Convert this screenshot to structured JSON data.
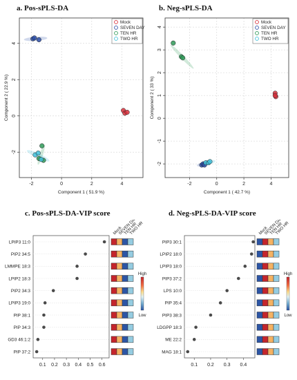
{
  "panels": {
    "a": {
      "title": "a. Pos-sPLS-DA"
    },
    "b": {
      "title": "b. Neg-sPLS-DA"
    },
    "c": {
      "title": "c. Pos-sPLS-DA-VIP score"
    },
    "d": {
      "title": "d. Neg-sPLS-DA-VIP score"
    }
  },
  "colors": {
    "Mock": "#d6303c",
    "SEVEN DAY": "#2f50a8",
    "TEN HR": "#2f9a58",
    "TWO HR": "#41c0d9"
  },
  "chart_data": [
    {
      "type": "scatter",
      "title": "a. Pos-sPLS-DA",
      "xlabel": "Component 1 ( 51.9 %)",
      "ylabel": "Component 2 ( 22.9 %)",
      "xlim": [
        -2.8,
        5.4
      ],
      "ylim": [
        -3.4,
        5.4
      ],
      "xticks": [
        -2,
        0,
        2,
        4
      ],
      "yticks": [
        -2,
        0,
        2,
        4
      ],
      "grid": true,
      "legend_placement": "top-right",
      "legend": [
        "Mock",
        "SEVEN DAY",
        "TEN HR",
        "TWO HR"
      ],
      "series": [
        {
          "name": "Mock",
          "points": [
            [
              4.1,
              0.3
            ],
            [
              4.2,
              0.15
            ],
            [
              4.35,
              0.2
            ]
          ]
        },
        {
          "name": "SEVEN DAY",
          "points": [
            [
              -1.9,
              4.25
            ],
            [
              -1.8,
              4.3
            ],
            [
              -1.5,
              4.2
            ]
          ]
        },
        {
          "name": "TEN HR",
          "points": [
            [
              -1.3,
              -1.65
            ],
            [
              -1.5,
              -2.35
            ],
            [
              -1.2,
              -2.45
            ]
          ]
        },
        {
          "name": "TWO HR",
          "points": [
            [
              -1.75,
              -2.15
            ],
            [
              -1.55,
              -2.05
            ],
            [
              -1.35,
              -2.4
            ]
          ]
        }
      ]
    },
    {
      "type": "scatter",
      "title": "b. Neg-sPLS-DA",
      "xlabel": "Component 1 ( 42.7 %)",
      "ylabel": "Component 2 ( 33 %)",
      "xlim": [
        -3.8,
        5.3
      ],
      "ylim": [
        -2.6,
        4.4
      ],
      "xticks": [
        -2,
        0,
        2,
        4
      ],
      "yticks": [
        -2,
        -1,
        0,
        1,
        2,
        3,
        4
      ],
      "grid": true,
      "legend_placement": "top-right",
      "legend": [
        "Mock",
        "SEVEN DAY",
        "TEN HR",
        "TWO HR"
      ],
      "series": [
        {
          "name": "Mock",
          "points": [
            [
              4.3,
              1.1
            ],
            [
              4.35,
              0.95
            ],
            [
              4.3,
              1.0
            ]
          ]
        },
        {
          "name": "SEVEN DAY",
          "points": [
            [
              -1.1,
              -2.05
            ],
            [
              -1.0,
              -2.0
            ],
            [
              -0.9,
              -2.05
            ]
          ]
        },
        {
          "name": "TEN HR",
          "points": [
            [
              -2.6,
              2.7
            ],
            [
              -2.5,
              2.65
            ],
            [
              -3.2,
              3.3
            ]
          ]
        },
        {
          "name": "TWO HR",
          "points": [
            [
              -0.8,
              -1.95
            ],
            [
              -0.6,
              -1.95
            ],
            [
              -0.5,
              -1.9
            ]
          ]
        }
      ]
    },
    {
      "type": "dot",
      "title": "c. Pos-sPLS-DA-VIP score",
      "xlim": [
        0.02,
        0.66
      ],
      "xticks": [
        0.1,
        0.2,
        0.3,
        0.4,
        0.5,
        0.6
      ],
      "features": [
        "LPIP3 11:0",
        "PIP2 34:5",
        "LMMPE 18:3",
        "LPIP2 18:3",
        "PIP2 34:3",
        "LPIP3 19:0",
        "PIP 38:1",
        "PIP 34:3",
        "GD3 46:1:2",
        "PIP 37:2"
      ],
      "values": [
        0.62,
        0.46,
        0.39,
        0.39,
        0.19,
        0.12,
        0.11,
        0.11,
        0.06,
        0.05
      ],
      "heat_columns": [
        "Mock",
        "SEVEN DAY",
        "TEN HR",
        "TWO HR"
      ],
      "heat": [
        [
          "#c4252c",
          "#f5b262",
          "#2c55a5",
          "#95cce1"
        ],
        [
          "#c4252c",
          "#f5b262",
          "#2c55a5",
          "#95cce1"
        ],
        [
          "#c4252c",
          "#f5b262",
          "#2c55a5",
          "#95cce1"
        ],
        [
          "#c4252c",
          "#f5b262",
          "#2c55a5",
          "#95cce1"
        ],
        [
          "#c4252c",
          "#f5b262",
          "#2c55a5",
          "#95cce1"
        ],
        [
          "#c4252c",
          "#f5b262",
          "#2c55a5",
          "#95cce1"
        ],
        [
          "#c4252c",
          "#f5b262",
          "#2c55a5",
          "#95cce1"
        ],
        [
          "#c4252c",
          "#f5b262",
          "#2c55a5",
          "#95cce1"
        ],
        [
          "#c4252c",
          "#f5b262",
          "#2c55a5",
          "#95cce1"
        ],
        [
          "#c4252c",
          "#f5b262",
          "#2c55a5",
          "#95cce1"
        ]
      ],
      "colorbar": {
        "high": "High",
        "low": "Low"
      }
    },
    {
      "type": "dot",
      "title": "d. Neg-sPLS-DA-VIP score",
      "xlim": [
        0.04,
        0.47
      ],
      "xticks": [
        0.1,
        0.2,
        0.3,
        0.4
      ],
      "features": [
        "PIP3 30:1",
        "LPIP2 18:0",
        "LPIP3 18:0",
        "PIP3 37:2",
        "LPS 10:0",
        "PIP 35:4",
        "PIP3 38:3",
        "LDGPP 18:3",
        "ME 22:2",
        "MAG 18:1"
      ],
      "values": [
        0.46,
        0.45,
        0.41,
        0.37,
        0.3,
        0.26,
        0.2,
        0.11,
        0.1,
        0.06
      ],
      "heat_columns": [
        "Mock",
        "SEVEN DAY",
        "TEN HR",
        "TWO HR"
      ],
      "heat": [
        [
          "#2c55a5",
          "#c4252c",
          "#f5b262",
          "#95cce1"
        ],
        [
          "#2c55a5",
          "#c4252c",
          "#f5b262",
          "#95cce1"
        ],
        [
          "#2c55a5",
          "#c4252c",
          "#f5b262",
          "#95cce1"
        ],
        [
          "#2c55a5",
          "#c4252c",
          "#f5b262",
          "#95cce1"
        ],
        [
          "#2c55a5",
          "#c4252c",
          "#f5b262",
          "#95cce1"
        ],
        [
          "#2c55a5",
          "#c4252c",
          "#f5b262",
          "#95cce1"
        ],
        [
          "#2c55a5",
          "#c4252c",
          "#f5b262",
          "#95cce1"
        ],
        [
          "#2c55a5",
          "#c4252c",
          "#f5b262",
          "#95cce1"
        ],
        [
          "#2c55a5",
          "#c4252c",
          "#f5b262",
          "#95cce1"
        ],
        [
          "#2c55a5",
          "#c4252c",
          "#f5b262",
          "#95cce1"
        ]
      ],
      "colorbar": {
        "high": "High",
        "low": "Low"
      }
    }
  ]
}
